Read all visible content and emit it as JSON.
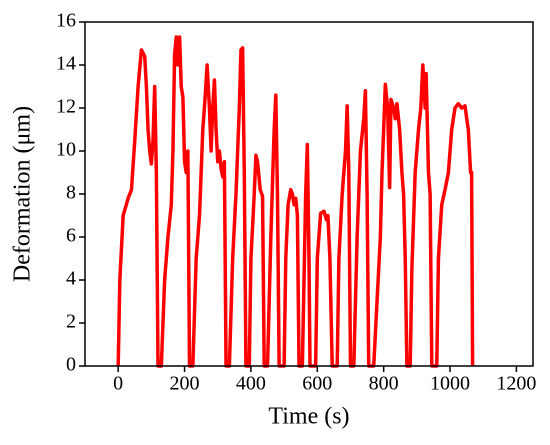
{
  "chart_data": {
    "type": "line",
    "xlabel": "Time (s)",
    "ylabel": "Deformation (μm)",
    "color": "#ff0000",
    "xlim": [
      -100,
      1250
    ],
    "xticks": [
      0,
      200,
      400,
      600,
      800,
      1000,
      1200
    ],
    "ylim": [
      0,
      16
    ],
    "yticks": [
      0,
      2,
      4,
      6,
      8,
      10,
      12,
      14,
      16
    ],
    "x": [
      0,
      5,
      15,
      30,
      40,
      50,
      60,
      70,
      80,
      85,
      90,
      95,
      100,
      105,
      110,
      115,
      120,
      130,
      140,
      150,
      160,
      165,
      170,
      175,
      180,
      185,
      190,
      195,
      200,
      205,
      210,
      215,
      225,
      235,
      245,
      255,
      262,
      268,
      275,
      280,
      285,
      290,
      295,
      300,
      305,
      310,
      315,
      320,
      325,
      335,
      345,
      355,
      365,
      370,
      375,
      380,
      385,
      395,
      400,
      410,
      415,
      420,
      428,
      435,
      440,
      450,
      460,
      470,
      475,
      480,
      485,
      500,
      505,
      512,
      520,
      525,
      530,
      535,
      540,
      545,
      555,
      560,
      565,
      570,
      575,
      578,
      595,
      600,
      610,
      620,
      628,
      632,
      638,
      645,
      660,
      665,
      675,
      685,
      690,
      695,
      700,
      710,
      720,
      730,
      740,
      745,
      750,
      755,
      770,
      780,
      790,
      795,
      800,
      805,
      812,
      818,
      822,
      830,
      835,
      840,
      848,
      855,
      860,
      865,
      870,
      880,
      885,
      895,
      905,
      912,
      918,
      925,
      928,
      935,
      940,
      945,
      960,
      965,
      975,
      985,
      995,
      1005,
      1015,
      1025,
      1035,
      1045,
      1055,
      1062,
      1065,
      1068
    ],
    "values": [
      0,
      4,
      7,
      7.8,
      8.2,
      10.5,
      13,
      14.7,
      14.4,
      13,
      11,
      10,
      9.4,
      10.5,
      13,
      9,
      0,
      0,
      4,
      6,
      7.5,
      10,
      14.5,
      15.3,
      14,
      15.3,
      13,
      12.5,
      9.5,
      9,
      10,
      0,
      0,
      5,
      7,
      11,
      12.5,
      14,
      12,
      10,
      12,
      13.3,
      11,
      9.5,
      10,
      9.2,
      8.8,
      9.5,
      0,
      0,
      5,
      8,
      12,
      14.7,
      14.8,
      9,
      0,
      0,
      5,
      8,
      9.8,
      9.5,
      8.2,
      7.9,
      0,
      0,
      6,
      11,
      12.6,
      8,
      0,
      0,
      5,
      7.5,
      8.2,
      8,
      7.5,
      7.8,
      7,
      0,
      0,
      4,
      8,
      10.3,
      5,
      0,
      0,
      5,
      7.1,
      7.2,
      6.8,
      7,
      5,
      0,
      0,
      5,
      8,
      10,
      12.1,
      9,
      0,
      0,
      6,
      10,
      11.5,
      12.8,
      8,
      0,
      0,
      3,
      6,
      9,
      11,
      13.1,
      12,
      8.3,
      12.4,
      12,
      11.5,
      12.2,
      11,
      9,
      8,
      5,
      0,
      0,
      4.5,
      9,
      11,
      12,
      14,
      12,
      13.6,
      9,
      8,
      0,
      0,
      5,
      7.5,
      8.2,
      9,
      11,
      12,
      12.2,
      12,
      12.1,
      11,
      9,
      9,
      0
    ]
  }
}
